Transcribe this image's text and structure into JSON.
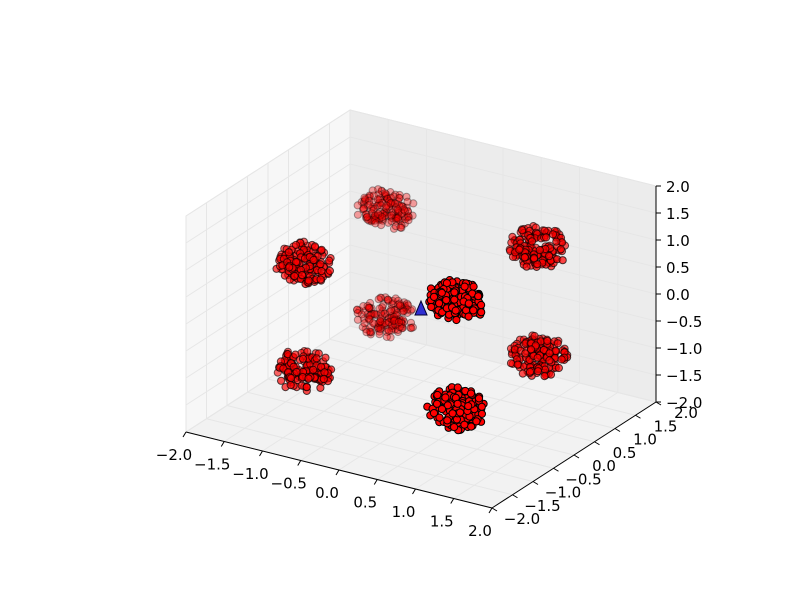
{
  "chart_data": {
    "type": "scatter",
    "projection": "3d",
    "title": "",
    "xlabel": "",
    "ylabel": "",
    "zlabel": "",
    "xlim": [
      -2.0,
      2.0
    ],
    "ylim": [
      -2.0,
      2.0
    ],
    "zlim": [
      -2.0,
      2.0
    ],
    "xticks": [
      "−2.0",
      "−1.5",
      "−1.0",
      "−0.5",
      "0.0",
      "0.5",
      "1.0",
      "1.5",
      "2.0"
    ],
    "yticks": [
      "−2.0",
      "−1.5",
      "−1.0",
      "−0.5",
      "0.0",
      "0.5",
      "1.0",
      "1.5",
      "2.0"
    ],
    "zticks": [
      "−2.0",
      "−1.5",
      "−1.0",
      "−0.5",
      "0.0",
      "0.5",
      "1.0",
      "1.5",
      "2.0"
    ],
    "grid": true,
    "legend": "none",
    "colors": {
      "points": "#ff0000",
      "point_edge": "#000000",
      "center_marker": "#0000cc",
      "pane": "#f2f2f2",
      "grid": "#e6e6e6"
    },
    "series": [
      {
        "marker": "circle",
        "color": "#ff0000",
        "points_per_cluster": 150,
        "cluster_spread": 0.35,
        "cluster_centers": [
          [
            -1,
            -1,
            -1
          ],
          [
            1,
            -1,
            -1
          ],
          [
            -1,
            1,
            -1
          ],
          [
            1,
            1,
            -1
          ],
          [
            -1,
            -1,
            1
          ],
          [
            1,
            -1,
            1
          ],
          [
            -1,
            1,
            1
          ],
          [
            1,
            1,
            1
          ]
        ]
      },
      {
        "marker": "triangle",
        "color": "#0000cc",
        "points": [
          [
            0,
            0,
            0
          ]
        ]
      }
    ]
  }
}
